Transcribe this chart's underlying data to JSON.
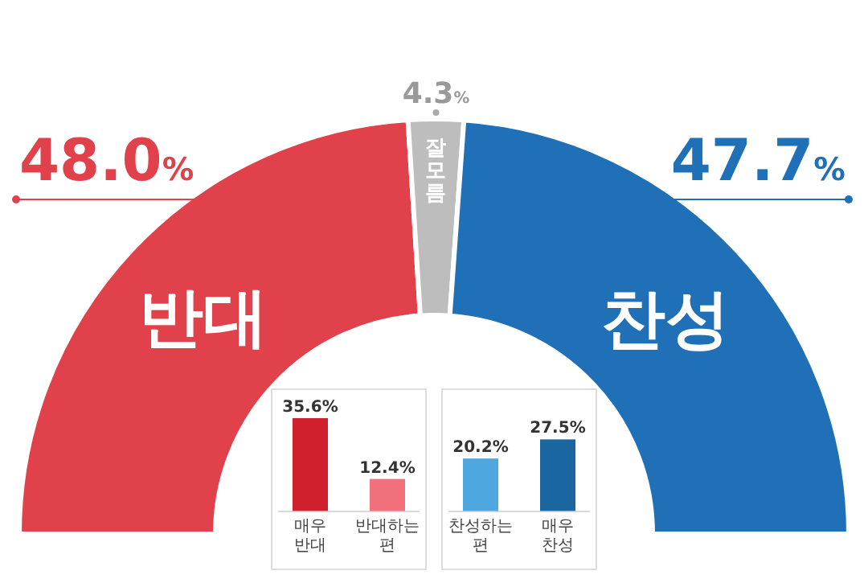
{
  "chart_data": [
    {
      "type": "donut",
      "categories": [
        "반대",
        "잘모름",
        "찬성"
      ],
      "values": [
        48.0,
        4.3,
        47.7
      ],
      "colors": [
        "#e0414b",
        "#bdbdbd",
        "#1f70b6"
      ],
      "value_labels": [
        "48.0%",
        "4.3%",
        "47.7%"
      ]
    },
    {
      "type": "bar",
      "categories": [
        "매우 반대",
        "반대하는 편"
      ],
      "values": [
        35.6,
        12.4
      ],
      "colors": [
        "#d1202d",
        "#f26f7c"
      ],
      "value_labels": [
        "35.6%",
        "12.4%"
      ]
    },
    {
      "type": "bar",
      "categories": [
        "찬성하는 편",
        "매우 찬성"
      ],
      "values": [
        20.2,
        27.5
      ],
      "colors": [
        "#4ea7df",
        "#1a66a1"
      ],
      "value_labels": [
        "20.2%",
        "27.5%"
      ]
    }
  ]
}
